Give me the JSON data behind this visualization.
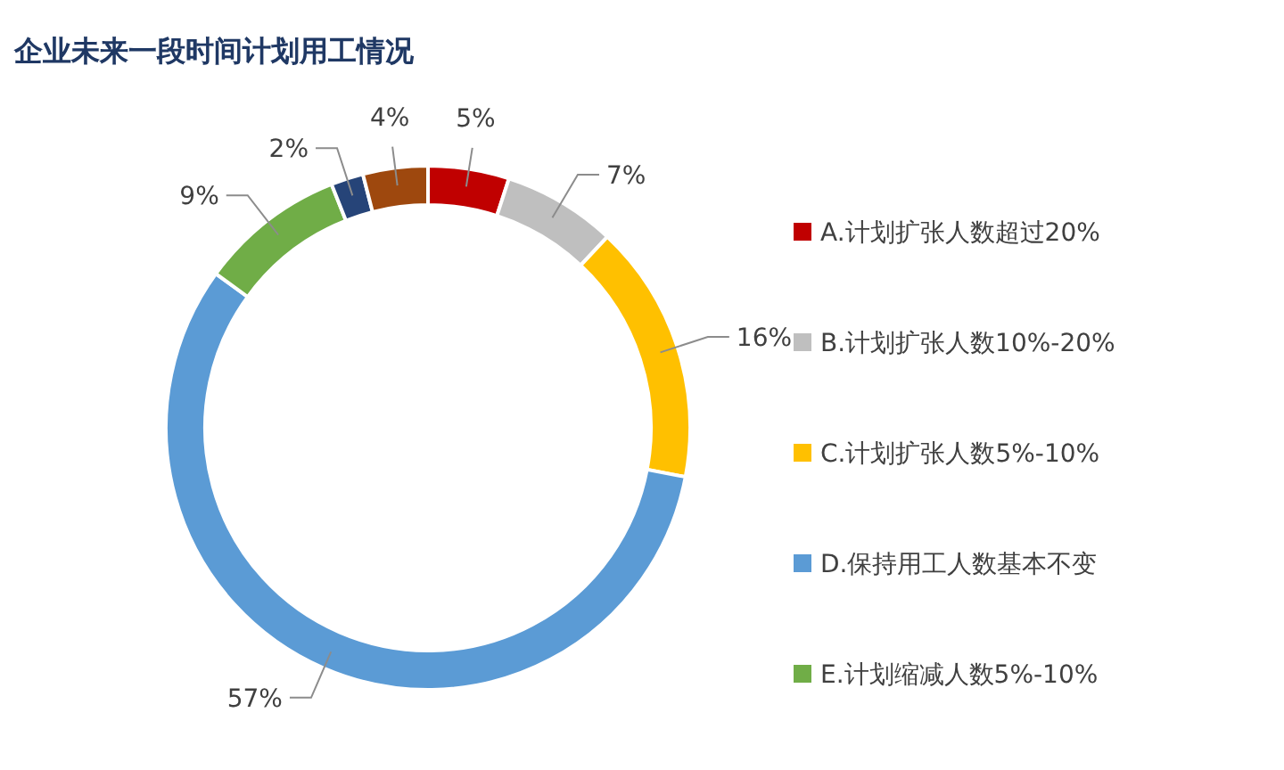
{
  "chart_data": {
    "type": "donut",
    "title": "企业未来一段时间计划用工情况",
    "categories": [
      "A.计划扩张人数超过20%",
      "B.计划扩张人数10%-20%",
      "C.计划扩张人数5%-10%",
      "D.保持用工人数基本不变",
      "E.计划缩减人数5%-10%",
      null,
      null
    ],
    "values": [
      5,
      7,
      16,
      57,
      9,
      2,
      4
    ],
    "colors": [
      "#c00000",
      "#bfbfbf",
      "#ffc000",
      "#5b9bd5",
      "#70ad47",
      "#264478",
      "#9e480e"
    ],
    "value_labels": [
      "5%",
      "7%",
      "16%",
      "57%",
      "9%",
      "2%",
      "4%"
    ],
    "legend": "right"
  }
}
